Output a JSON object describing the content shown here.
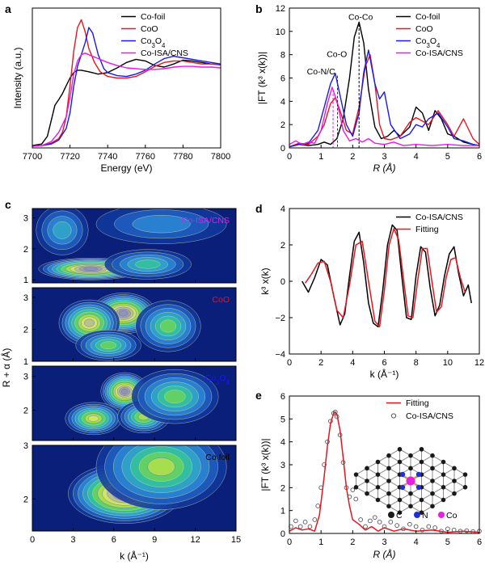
{
  "chart_data": [
    {
      "panel": "a",
      "type": "line",
      "xlabel": "Energy (eV)",
      "ylabel": "Intensity (a.u.)",
      "xlim": [
        7700,
        7800
      ],
      "ylim": [
        0,
        1.8
      ],
      "xticks": [
        "7700",
        "7720",
        "7740",
        "7760",
        "7780",
        "7800"
      ],
      "legend": "top-right",
      "series": [
        {
          "name": "Co-foil",
          "color": "#000000",
          "x": [
            7700,
            7705,
            7708,
            7710,
            7712,
            7714,
            7716,
            7718,
            7720,
            7722,
            7724,
            7726,
            7730,
            7735,
            7740,
            7745,
            7750,
            7755,
            7760,
            7765,
            7770,
            7775,
            7780,
            7785,
            7790,
            7795,
            7800
          ],
          "y": [
            0.03,
            0.05,
            0.15,
            0.35,
            0.55,
            0.62,
            0.7,
            0.8,
            0.9,
            0.97,
            1.0,
            1.0,
            0.98,
            0.95,
            0.97,
            1.03,
            1.1,
            1.14,
            1.12,
            1.06,
            1.04,
            1.08,
            1.13,
            1.12,
            1.1,
            1.08,
            1.07
          ]
        },
        {
          "name": "CoO",
          "color": "#e8141e",
          "x": [
            7700,
            7705,
            7710,
            7714,
            7716,
            7718,
            7720,
            7722,
            7724,
            7726,
            7728,
            7730,
            7733,
            7736,
            7740,
            7745,
            7750,
            7755,
            7760,
            7765,
            7770,
            7775,
            7780,
            7785,
            7790,
            7795,
            7800
          ],
          "y": [
            0.02,
            0.03,
            0.06,
            0.12,
            0.2,
            0.4,
            0.8,
            1.25,
            1.55,
            1.65,
            1.5,
            1.28,
            1.1,
            0.98,
            0.92,
            0.9,
            0.9,
            0.92,
            0.98,
            1.05,
            1.1,
            1.12,
            1.12,
            1.1,
            1.08,
            1.08,
            1.07
          ]
        },
        {
          "name": "Co3O4",
          "color": "#1a1ae6",
          "x": [
            7700,
            7705,
            7710,
            7714,
            7718,
            7720,
            7722,
            7724,
            7726,
            7728,
            7729,
            7730,
            7732,
            7735,
            7738,
            7740,
            7745,
            7750,
            7755,
            7760,
            7765,
            7770,
            7775,
            7780,
            7785,
            7790,
            7795,
            7800
          ],
          "y": [
            0.02,
            0.03,
            0.05,
            0.1,
            0.25,
            0.45,
            0.8,
            1.05,
            1.2,
            1.35,
            1.45,
            1.55,
            1.48,
            1.2,
            1.02,
            0.97,
            0.93,
            0.92,
            0.95,
            1.0,
            1.08,
            1.15,
            1.18,
            1.16,
            1.14,
            1.12,
            1.1,
            1.08
          ]
        },
        {
          "name": "Co-ISA/CNS",
          "color": "#e619e6",
          "x": [
            7700,
            7705,
            7710,
            7714,
            7718,
            7720,
            7722,
            7724,
            7726,
            7728,
            7730,
            7735,
            7740,
            7745,
            7750,
            7755,
            7760,
            7765,
            7770,
            7775,
            7780,
            7785,
            7790,
            7795,
            7800
          ],
          "y": [
            0.02,
            0.03,
            0.08,
            0.2,
            0.4,
            0.65,
            0.95,
            1.12,
            1.2,
            1.22,
            1.2,
            1.15,
            1.1,
            1.06,
            1.03,
            1.02,
            1.01,
            1.01,
            1.02,
            1.04,
            1.05,
            1.05,
            1.04,
            1.04,
            1.03
          ]
        }
      ]
    },
    {
      "panel": "b",
      "type": "line",
      "xlabel": "R (Å)",
      "ylabel": "|FT (k³ x(k))|",
      "xlim": [
        0,
        6
      ],
      "ylim": [
        0,
        12
      ],
      "xticks": [
        "0",
        "1",
        "2",
        "3",
        "4",
        "5",
        "6"
      ],
      "yticks": [
        "0",
        "2",
        "4",
        "6",
        "8",
        "10",
        "12"
      ],
      "legend": "top-right",
      "annotations": [
        "Co-Co",
        "Co-O",
        "Co-N/C"
      ],
      "series": [
        {
          "name": "Co-foil",
          "color": "#000000",
          "x": [
            0,
            0.3,
            0.6,
            0.9,
            1.1,
            1.3,
            1.5,
            1.7,
            1.9,
            2.05,
            2.2,
            2.35,
            2.5,
            2.7,
            2.9,
            3.1,
            3.3,
            3.5,
            3.8,
            4.0,
            4.2,
            4.4,
            4.6,
            4.8,
            5.0,
            5.2,
            5.5,
            5.8,
            6.0
          ],
          "y": [
            0.1,
            0.3,
            0.2,
            0.3,
            0.5,
            0.3,
            0.8,
            2.5,
            6.0,
            9.5,
            10.8,
            9.0,
            5.0,
            1.8,
            0.8,
            1.0,
            1.5,
            1.0,
            1.8,
            3.5,
            3.0,
            1.5,
            3.2,
            2.5,
            1.2,
            1.0,
            0.5,
            0.3,
            0.2
          ]
        },
        {
          "name": "CoO",
          "color": "#e8141e",
          "x": [
            0,
            0.3,
            0.6,
            0.9,
            1.1,
            1.3,
            1.45,
            1.6,
            1.8,
            2.0,
            2.2,
            2.4,
            2.55,
            2.7,
            2.85,
            3.0,
            3.2,
            3.5,
            3.8,
            4.0,
            4.2,
            4.4,
            4.7,
            5.0,
            5.2,
            5.5,
            5.8,
            6.0
          ],
          "y": [
            0.1,
            0.4,
            0.3,
            1.0,
            2.0,
            3.8,
            4.3,
            3.2,
            1.5,
            1.2,
            3.5,
            7.0,
            8.0,
            5.5,
            2.0,
            0.8,
            0.7,
            1.0,
            2.2,
            2.6,
            2.3,
            2.0,
            3.2,
            2.0,
            1.0,
            2.5,
            0.8,
            0.3
          ]
        },
        {
          "name": "Co3O4",
          "color": "#1a1ae6",
          "x": [
            0,
            0.3,
            0.6,
            0.9,
            1.1,
            1.3,
            1.45,
            1.6,
            1.8,
            2.0,
            2.2,
            2.35,
            2.5,
            2.7,
            2.85,
            3.0,
            3.2,
            3.5,
            3.8,
            4.0,
            4.2,
            4.4,
            4.7,
            5.0,
            5.2,
            5.5,
            5.8,
            6.0
          ],
          "y": [
            0.1,
            0.3,
            0.4,
            1.5,
            3.5,
            5.5,
            6.4,
            4.5,
            2.0,
            1.0,
            3.0,
            6.5,
            8.4,
            5.5,
            4.2,
            4.8,
            2.0,
            0.8,
            1.2,
            2.0,
            1.8,
            2.5,
            3.0,
            1.8,
            0.8,
            0.6,
            0.3,
            0.2
          ]
        },
        {
          "name": "Co-ISA/CNS",
          "color": "#e619e6",
          "x": [
            0,
            0.2,
            0.4,
            0.6,
            0.8,
            1.0,
            1.2,
            1.35,
            1.5,
            1.7,
            1.9,
            2.1,
            2.3,
            2.5,
            2.7,
            3.0,
            3.3,
            3.6,
            4.0,
            4.5,
            5.0,
            5.5,
            6.0
          ],
          "y": [
            0.3,
            0.6,
            0.3,
            0.5,
            0.4,
            1.5,
            3.8,
            5.2,
            4.0,
            1.5,
            0.6,
            0.8,
            0.5,
            0.8,
            0.4,
            0.3,
            0.5,
            0.2,
            0.3,
            0.2,
            0.3,
            0.2,
            0.2
          ]
        }
      ]
    },
    {
      "panel": "c",
      "type": "heatmap",
      "xlabel": "k (Å⁻¹)",
      "ylabel": "R + α (Å)",
      "xlim": [
        0,
        15
      ],
      "xticks": [
        "0",
        "3",
        "6",
        "9",
        "12",
        "15"
      ],
      "subplots": [
        {
          "label": "Co-ISA/CNS",
          "label_color": "#e619e6",
          "ylim": [
            0.9,
            3.3
          ],
          "yticks": [
            "1",
            "2",
            "3"
          ],
          "peaks": [
            {
              "k": 4.3,
              "r": 1.35,
              "amp": 1.0,
              "sk": 2.4,
              "sr": 0.22
            },
            {
              "k": 8.5,
              "r": 1.5,
              "amp": 0.45,
              "sk": 2.0,
              "sr": 0.3
            },
            {
              "k": 2.2,
              "r": 2.6,
              "amp": 0.35,
              "sk": 1.2,
              "sr": 0.5
            },
            {
              "k": 9.5,
              "r": 2.8,
              "amp": 0.3,
              "sk": 3.0,
              "sr": 0.4
            }
          ]
        },
        {
          "label": "CoO",
          "label_color": "#e8141e",
          "ylim": [
            1.0,
            3.3
          ],
          "yticks": [
            "1",
            "2",
            "3"
          ],
          "peaks": [
            {
              "k": 6.7,
              "r": 2.5,
              "amp": 1.0,
              "sk": 1.5,
              "sr": 0.4
            },
            {
              "k": 4.2,
              "r": 2.2,
              "amp": 0.8,
              "sk": 1.4,
              "sr": 0.45
            },
            {
              "k": 5.6,
              "r": 1.5,
              "amp": 0.55,
              "sk": 1.5,
              "sr": 0.3
            },
            {
              "k": 10.0,
              "r": 2.1,
              "amp": 0.5,
              "sk": 1.5,
              "sr": 0.5
            }
          ]
        },
        {
          "label": "Co3O4",
          "label_color": "#1a1ae6",
          "ylim": [
            1.1,
            3.3
          ],
          "yticks": [
            "2",
            "3"
          ],
          "peaks": [
            {
              "k": 6.8,
              "r": 2.55,
              "amp": 1.0,
              "sk": 1.1,
              "sr": 0.35
            },
            {
              "k": 4.5,
              "r": 1.75,
              "amp": 0.75,
              "sk": 1.3,
              "sr": 0.3
            },
            {
              "k": 8.2,
              "r": 1.8,
              "amp": 0.6,
              "sk": 1.2,
              "sr": 0.3
            },
            {
              "k": 10.5,
              "r": 2.4,
              "amp": 0.55,
              "sk": 2.0,
              "sr": 0.5
            }
          ]
        },
        {
          "label": "Co foil",
          "label_color": "#000000",
          "ylim": [
            1.4,
            3.0
          ],
          "yticks": [
            "2",
            "3"
          ],
          "peaks": [
            {
              "k": 6.8,
              "r": 2.1,
              "amp": 1.0,
              "sk": 2.6,
              "sr": 0.35
            },
            {
              "k": 9.5,
              "r": 2.6,
              "amp": 0.6,
              "sk": 3.0,
              "sr": 0.5
            }
          ]
        }
      ]
    },
    {
      "panel": "d",
      "type": "line",
      "xlabel": "k (Å⁻¹)",
      "ylabel": "k³ x(k)",
      "xlim": [
        0,
        12
      ],
      "ylim": [
        -4,
        4
      ],
      "xticks": [
        "0",
        "2",
        "4",
        "6",
        "8",
        "10",
        "12"
      ],
      "yticks": [
        "-4",
        "-2",
        "0",
        "2",
        "4"
      ],
      "legend": "top-right",
      "series": [
        {
          "name": "Co-ISA/CNS",
          "color": "#000000",
          "x": [
            0.8,
            1.2,
            1.6,
            2.0,
            2.4,
            2.8,
            3.2,
            3.5,
            3.8,
            4.1,
            4.4,
            4.7,
            5.0,
            5.3,
            5.6,
            5.9,
            6.2,
            6.5,
            6.8,
            7.1,
            7.4,
            7.7,
            8.0,
            8.3,
            8.6,
            8.9,
            9.2,
            9.5,
            9.8,
            10.1,
            10.4,
            10.7,
            11.0,
            11.3,
            11.5
          ],
          "y": [
            0.0,
            -0.6,
            0.2,
            1.2,
            0.9,
            -0.8,
            -2.4,
            -1.8,
            0.3,
            2.2,
            2.7,
            1.0,
            -1.2,
            -2.3,
            -2.5,
            -0.5,
            2.0,
            3.1,
            2.8,
            0.3,
            -2.0,
            -2.1,
            0.3,
            1.9,
            1.6,
            -0.4,
            -1.9,
            -1.3,
            0.3,
            1.5,
            1.9,
            0.4,
            -0.8,
            -0.2,
            -1.2
          ]
        },
        {
          "name": "Fitting",
          "color": "#e8141e",
          "x": [
            1.0,
            1.4,
            1.8,
            2.2,
            2.6,
            3.0,
            3.4,
            3.8,
            4.2,
            4.6,
            5.0,
            5.4,
            5.7,
            6.0,
            6.3,
            6.6,
            6.9,
            7.2,
            7.5,
            7.8,
            8.1,
            8.4,
            8.7,
            9.0,
            9.3,
            9.6,
            9.9,
            10.2,
            10.5,
            10.8,
            11.1
          ],
          "y": [
            -0.1,
            0.4,
            1.0,
            1.1,
            0.0,
            -1.6,
            -2.0,
            -0.2,
            2.0,
            2.2,
            0.0,
            -2.2,
            -2.5,
            -0.5,
            2.0,
            2.9,
            2.3,
            0.2,
            -1.9,
            -2.0,
            0.0,
            1.8,
            1.8,
            0.0,
            -1.7,
            -1.4,
            0.2,
            1.2,
            1.3,
            0.2,
            -0.6
          ]
        }
      ]
    },
    {
      "panel": "e",
      "type": "line",
      "xlabel": "R (Å)",
      "ylabel": "|FT (k³ x(k))|",
      "xlim": [
        0,
        6
      ],
      "ylim": [
        0,
        6
      ],
      "xticks": [
        "0",
        "1",
        "2",
        "3",
        "4",
        "5",
        "6"
      ],
      "yticks": [
        "0",
        "1",
        "2",
        "3",
        "4",
        "5",
        "6"
      ],
      "legend": "top-right",
      "inset_legend": [
        "C",
        "N",
        "Co"
      ],
      "series": [
        {
          "name": "Fitting",
          "color": "#e8141e",
          "x": [
            0,
            0.2,
            0.4,
            0.6,
            0.8,
            0.95,
            1.1,
            1.2,
            1.3,
            1.4,
            1.45,
            1.5,
            1.6,
            1.7,
            1.8,
            1.9,
            2.0,
            2.2,
            2.4,
            2.6,
            2.8,
            3.0,
            3.3,
            3.6,
            4.0,
            4.5,
            5.0,
            5.5,
            6.0
          ],
          "y": [
            0.1,
            0.25,
            0.15,
            0.2,
            0.1,
            0.8,
            2.5,
            3.8,
            4.8,
            5.25,
            5.3,
            5.2,
            4.5,
            3.3,
            2.0,
            1.2,
            0.6,
            0.4,
            0.15,
            0.3,
            0.1,
            0.25,
            0.1,
            0.2,
            0.1,
            0.15,
            0.05,
            0.1,
            0.05
          ]
        },
        {
          "name": "Co-ISA/CNS",
          "color": "#555555",
          "markers": "open-circle",
          "x": [
            0.05,
            0.2,
            0.35,
            0.5,
            0.65,
            0.8,
            0.9,
            1.0,
            1.1,
            1.2,
            1.3,
            1.4,
            1.45,
            1.5,
            1.6,
            1.7,
            1.8,
            1.9,
            2.0,
            2.1,
            2.25,
            2.4,
            2.55,
            2.7,
            2.85,
            3.0,
            3.2,
            3.4,
            3.6,
            3.8,
            4.0,
            4.2,
            4.4,
            4.6,
            4.8,
            5.0,
            5.2,
            5.4,
            5.6,
            5.8,
            6.0
          ],
          "y": [
            0.3,
            0.55,
            0.3,
            0.5,
            0.3,
            0.6,
            1.2,
            2.0,
            3.0,
            4.0,
            4.9,
            5.25,
            5.3,
            5.1,
            4.3,
            3.1,
            2.0,
            1.6,
            1.9,
            1.5,
            0.6,
            0.3,
            0.55,
            0.7,
            0.5,
            0.3,
            0.5,
            0.35,
            0.2,
            0.4,
            0.3,
            0.15,
            0.3,
            0.25,
            0.1,
            0.2,
            0.15,
            0.1,
            0.12,
            0.08,
            0.1
          ]
        }
      ]
    }
  ]
}
